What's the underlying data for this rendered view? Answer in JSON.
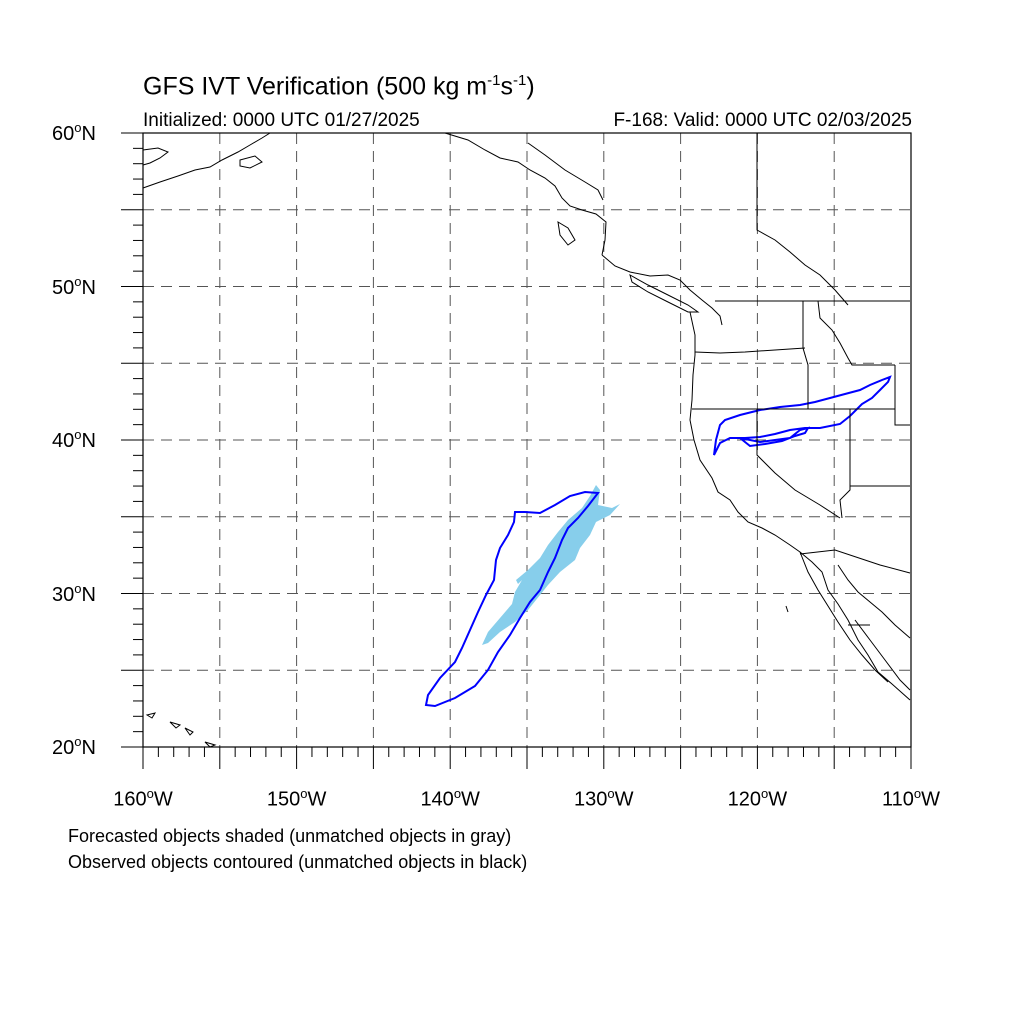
{
  "header": {
    "title_main": "GFS IVT Verification (500 kg m",
    "title_sup1": "-1",
    "title_mid": "s",
    "title_sup2": "-1",
    "title_end": ")",
    "initialized": "Initialized: 0000 UTC 01/27/2025",
    "valid": "F-168: Valid: 0000 UTC 02/03/2025"
  },
  "map": {
    "lon_range": [
      -160,
      -110
    ],
    "lat_range": [
      20,
      60
    ],
    "y_ticks": [
      {
        "value": 60,
        "label": "60",
        "suffix": "N"
      },
      {
        "value": 50,
        "label": "50",
        "suffix": "N"
      },
      {
        "value": 40,
        "label": "40",
        "suffix": "N"
      },
      {
        "value": 30,
        "label": "30",
        "suffix": "N"
      },
      {
        "value": 20,
        "label": "20",
        "suffix": "N"
      }
    ],
    "x_ticks": [
      {
        "value": -160,
        "label": "160",
        "suffix": "W"
      },
      {
        "value": -150,
        "label": "150",
        "suffix": "W"
      },
      {
        "value": -140,
        "label": "140",
        "suffix": "W"
      },
      {
        "value": -130,
        "label": "130",
        "suffix": "W"
      },
      {
        "value": -120,
        "label": "120",
        "suffix": "W"
      },
      {
        "value": -110,
        "label": "110",
        "suffix": "W"
      }
    ],
    "gridline_interval_deg": 5,
    "forecast_color": "#87CEEB",
    "observed_color": "#0000FF",
    "coast_color": "#000000"
  },
  "notes": {
    "line1": "Forecasted objects shaded (unmatched objects in gray)",
    "line2": "Observed objects contoured (unmatched objects in black)"
  }
}
